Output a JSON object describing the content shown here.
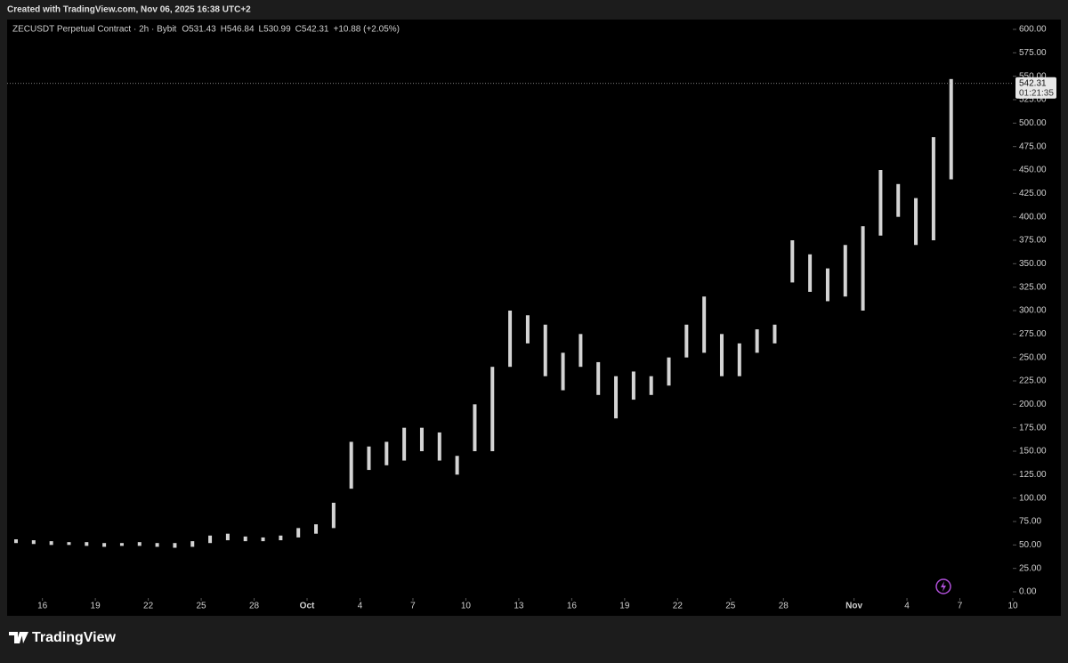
{
  "header": {
    "created": "Created with TradingView.com, Nov 06, 2025 16:38 UTC+2"
  },
  "footer": {
    "brand": "TradingView"
  },
  "chart_data": {
    "type": "range",
    "title": "ZECUSDT Perpetual Contract · 2h · Bybit",
    "ohlc": [
      "O531.43",
      "H546.84",
      "L530.99",
      "C542.31",
      "+10.88 (+2.05%)"
    ],
    "x": [
      "2025-09-14",
      "2025-09-15",
      "2025-09-16",
      "2025-09-17",
      "2025-09-18",
      "2025-09-19",
      "2025-09-20",
      "2025-09-21",
      "2025-09-22",
      "2025-09-23",
      "2025-09-24",
      "2025-09-25",
      "2025-09-26",
      "2025-09-27",
      "2025-09-28",
      "2025-09-29",
      "2025-09-30",
      "2025-10-01",
      "2025-10-02",
      "2025-10-03",
      "2025-10-04",
      "2025-10-05",
      "2025-10-06",
      "2025-10-07",
      "2025-10-08",
      "2025-10-09",
      "2025-10-10",
      "2025-10-11",
      "2025-10-12",
      "2025-10-13",
      "2025-10-14",
      "2025-10-15",
      "2025-10-16",
      "2025-10-17",
      "2025-10-18",
      "2025-10-19",
      "2025-10-20",
      "2025-10-21",
      "2025-10-22",
      "2025-10-23",
      "2025-10-24",
      "2025-10-25",
      "2025-10-26",
      "2025-10-27",
      "2025-10-28",
      "2025-10-29",
      "2025-10-30",
      "2025-10-31",
      "2025-11-01",
      "2025-11-02",
      "2025-11-03",
      "2025-11-04",
      "2025-11-05",
      "2025-11-06"
    ],
    "low": [
      52,
      51,
      50,
      50,
      49,
      48,
      49,
      49,
      48,
      47,
      48,
      52,
      55,
      54,
      54,
      55,
      58,
      62,
      68,
      110,
      130,
      135,
      140,
      150,
      140,
      125,
      150,
      150,
      240,
      265,
      230,
      215,
      240,
      210,
      185,
      205,
      210,
      220,
      250,
      255,
      230,
      230,
      255,
      265,
      330,
      320,
      310,
      315,
      300,
      380,
      400,
      370,
      375,
      440
    ],
    "high": [
      56,
      55,
      54,
      53,
      53,
      52,
      52,
      53,
      52,
      52,
      54,
      60,
      62,
      59,
      58,
      60,
      68,
      72,
      95,
      160,
      155,
      160,
      175,
      175,
      170,
      145,
      200,
      240,
      300,
      295,
      285,
      255,
      275,
      245,
      230,
      235,
      230,
      250,
      285,
      315,
      275,
      265,
      280,
      285,
      375,
      360,
      345,
      370,
      390,
      450,
      435,
      420,
      485,
      547
    ],
    "color": "#d4d4d4",
    "last_price": 542.31,
    "last_price_label": "542.31",
    "countdown": "01:21:35",
    "xlim": [
      "2025-09-14",
      "2025-11-10"
    ],
    "xticks": [
      {
        "value": "2025-09-16",
        "label": "16"
      },
      {
        "value": "2025-09-19",
        "label": "19"
      },
      {
        "value": "2025-09-22",
        "label": "22"
      },
      {
        "value": "2025-09-25",
        "label": "25"
      },
      {
        "value": "2025-09-28",
        "label": "28"
      },
      {
        "value": "2025-10-01",
        "label": "Oct"
      },
      {
        "value": "2025-10-04",
        "label": "4"
      },
      {
        "value": "2025-10-07",
        "label": "7"
      },
      {
        "value": "2025-10-10",
        "label": "10"
      },
      {
        "value": "2025-10-13",
        "label": "13"
      },
      {
        "value": "2025-10-16",
        "label": "16"
      },
      {
        "value": "2025-10-19",
        "label": "19"
      },
      {
        "value": "2025-10-22",
        "label": "22"
      },
      {
        "value": "2025-10-25",
        "label": "25"
      },
      {
        "value": "2025-10-28",
        "label": "28"
      },
      {
        "value": "2025-11-01",
        "label": "Nov"
      },
      {
        "value": "2025-11-04",
        "label": "4"
      },
      {
        "value": "2025-11-07",
        "label": "7"
      },
      {
        "value": "2025-11-10",
        "label": "10"
      }
    ],
    "ylim": [
      0,
      600
    ],
    "yticks": [
      {
        "value": 0,
        "label": "0.00"
      },
      {
        "value": 25,
        "label": "25.00"
      },
      {
        "value": 50,
        "label": "50.00"
      },
      {
        "value": 75,
        "label": "75.00"
      },
      {
        "value": 100,
        "label": "100.00"
      },
      {
        "value": 125,
        "label": "125.00"
      },
      {
        "value": 150,
        "label": "150.00"
      },
      {
        "value": 175,
        "label": "175.00"
      },
      {
        "value": 200,
        "label": "200.00"
      },
      {
        "value": 225,
        "label": "225.00"
      },
      {
        "value": 250,
        "label": "250.00"
      },
      {
        "value": 275,
        "label": "275.00"
      },
      {
        "value": 300,
        "label": "300.00"
      },
      {
        "value": 325,
        "label": "325.00"
      },
      {
        "value": 350,
        "label": "350.00"
      },
      {
        "value": 375,
        "label": "375.00"
      },
      {
        "value": 400,
        "label": "400.00"
      },
      {
        "value": 425,
        "label": "425.00"
      },
      {
        "value": 450,
        "label": "450.00"
      },
      {
        "value": 475,
        "label": "475.00"
      },
      {
        "value": 500,
        "label": "500.00"
      },
      {
        "value": 525,
        "label": "525.00"
      },
      {
        "value": 550,
        "label": "550.00"
      },
      {
        "value": 575,
        "label": "575.00"
      },
      {
        "value": 600,
        "label": "600.00"
      }
    ]
  }
}
